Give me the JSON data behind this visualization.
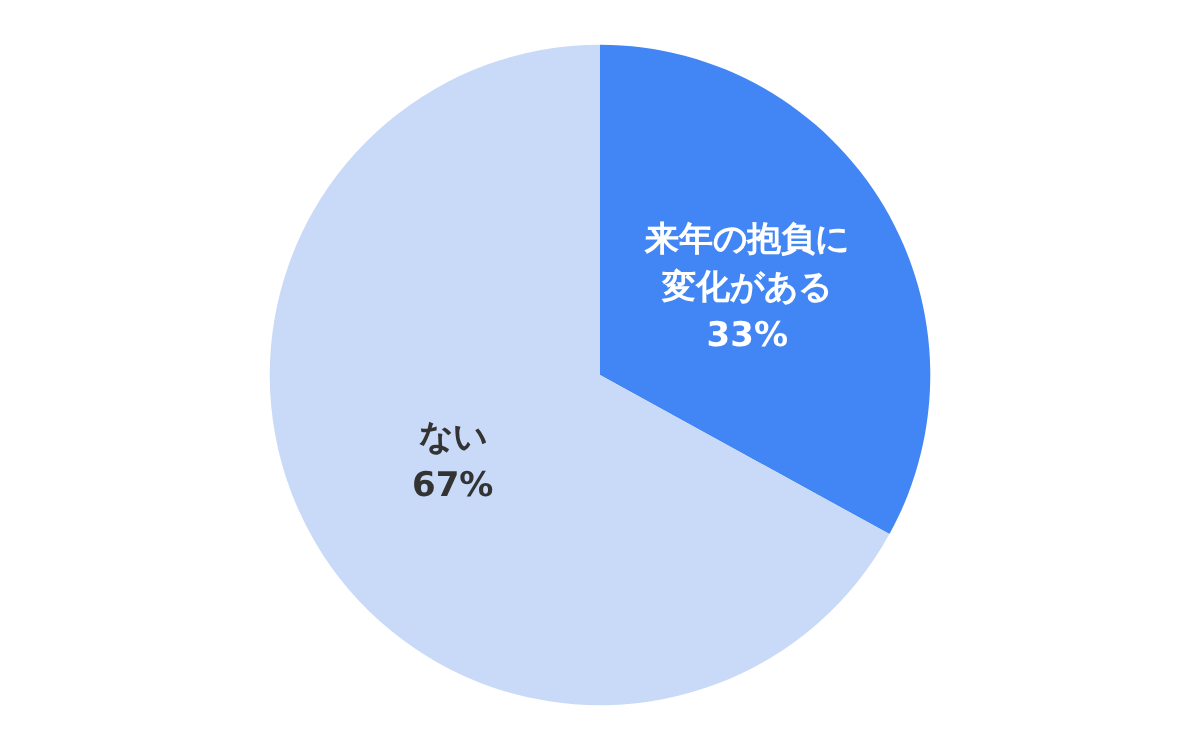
{
  "chart_data": {
    "type": "pie",
    "categories": [
      "来年の抱負に変化がある",
      "ない"
    ],
    "values": [
      33,
      67
    ],
    "value_labels": [
      "33%",
      "67%"
    ],
    "colors": [
      "#4285f4",
      "#c9daf8"
    ],
    "legend": false
  }
}
